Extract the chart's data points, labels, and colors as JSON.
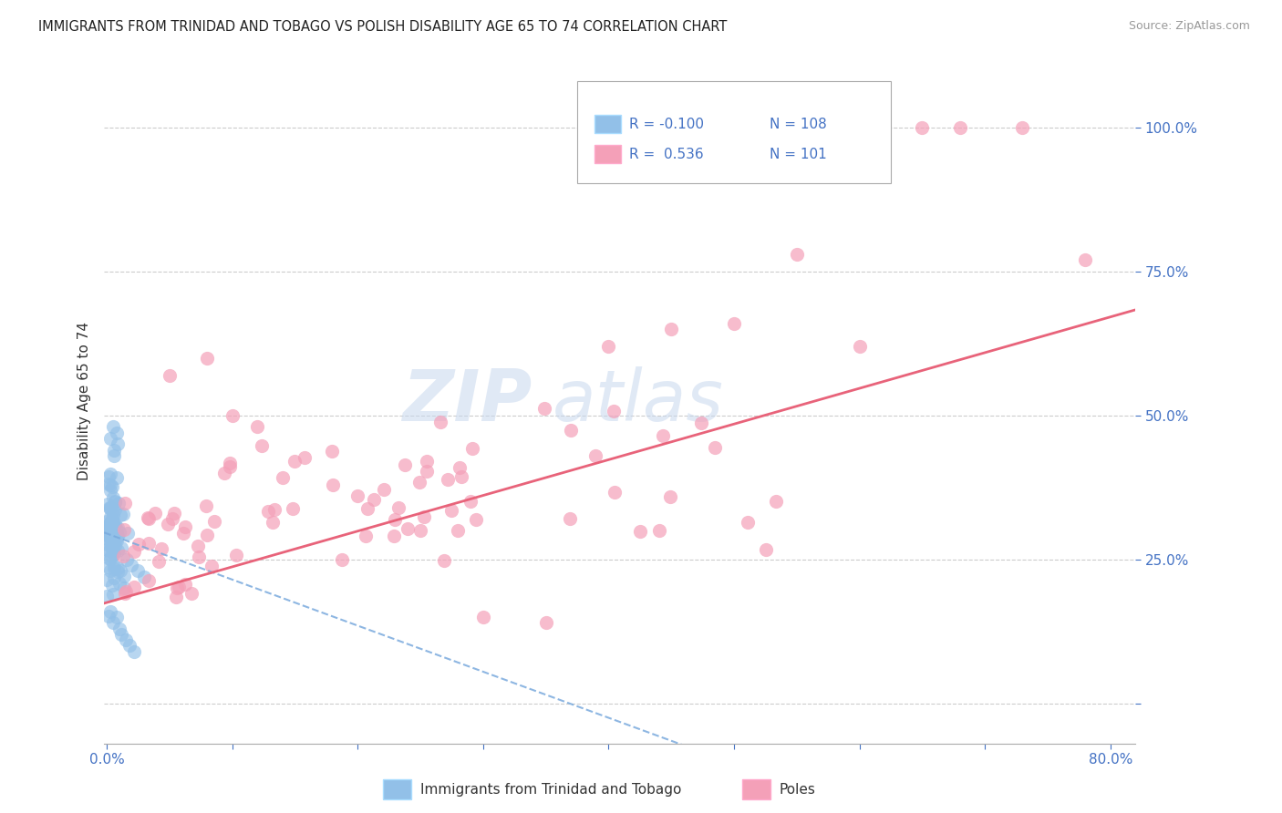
{
  "title": "IMMIGRANTS FROM TRINIDAD AND TOBAGO VS POLISH DISABILITY AGE 65 TO 74 CORRELATION CHART",
  "source": "Source: ZipAtlas.com",
  "ylabel": "Disability Age 65 to 74",
  "xlim": [
    -0.002,
    0.82
  ],
  "ylim": [
    -0.07,
    1.12
  ],
  "grid_color": "#cccccc",
  "background_color": "#ffffff",
  "legend_R1": "-0.100",
  "legend_N1": "108",
  "legend_R2": "0.536",
  "legend_N2": "101",
  "color_blue": "#92c0e8",
  "color_pink": "#f4a0b8",
  "color_blue_line": "#92c0e8",
  "color_pink_line": "#e8637a",
  "blue_line_slope": -0.8,
  "blue_line_intercept": 0.295,
  "pink_line_slope": 0.62,
  "pink_line_intercept": 0.175
}
